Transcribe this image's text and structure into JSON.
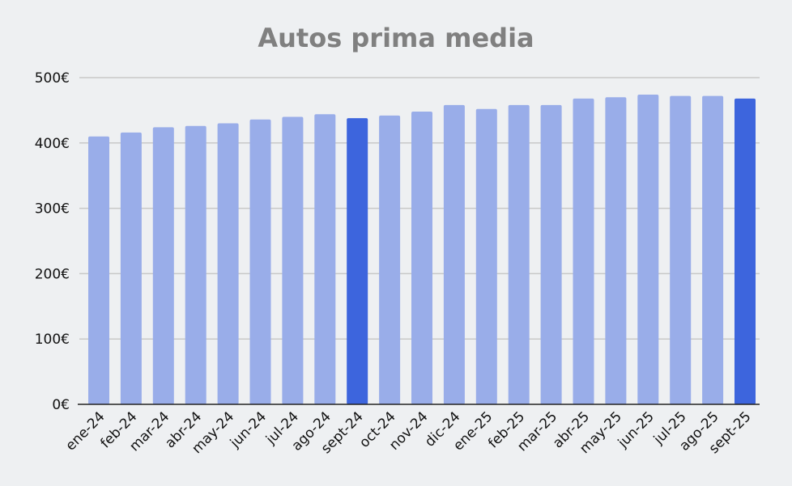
{
  "chart_data": {
    "type": "bar",
    "title": "Autos prima media",
    "xlabel": "",
    "ylabel": "",
    "categories": [
      "ene-24",
      "feb-24",
      "mar-24",
      "abr-24",
      "may-24",
      "jun-24",
      "jul-24",
      "ago-24",
      "sept-24",
      "oct-24",
      "nov-24",
      "dic-24",
      "ene-25",
      "feb-25",
      "mar-25",
      "abr-25",
      "may-25",
      "jun-25",
      "jul-25",
      "ago-25",
      "sept-25"
    ],
    "values": [
      410,
      416,
      424,
      426,
      430,
      436,
      440,
      444,
      438,
      442,
      448,
      458,
      452,
      458,
      458,
      468,
      470,
      474,
      472,
      472,
      468
    ],
    "highlighted": [
      "sept-24",
      "sept-25"
    ],
    "ylim": [
      0,
      500
    ],
    "yticks": [
      0,
      100,
      200,
      300,
      400,
      500
    ],
    "ytick_labels": [
      "0€",
      "100€",
      "200€",
      "300€",
      "400€",
      "500€"
    ],
    "grid": true,
    "colors": {
      "bar": "#99ade9",
      "highlight": "#3d65dd",
      "grid": "#c8c8c8",
      "axis": "#222222",
      "background": "#eef0f2"
    }
  }
}
